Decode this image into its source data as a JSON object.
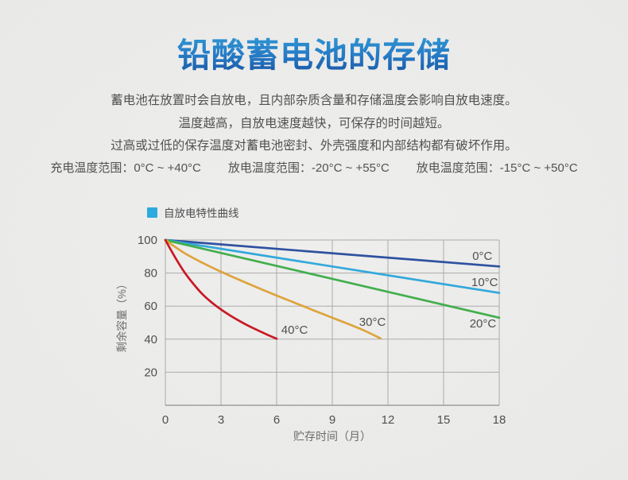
{
  "page": {
    "title": "铅酸蓄电池的存储",
    "description_lines": [
      "蓄电池在放置时会自放电，且内部杂质含量和存储温度会影响自放电速度。",
      "温度越高，自放电速度越快，可保存的时间越短。",
      "过高或过低的保存温度对蓄电池密封、外壳强度和内部结构都有破坏作用。"
    ],
    "temperature_ranges": [
      {
        "label": "充电温度范围：",
        "value": "0°C ~ +40°C"
      },
      {
        "label": "放电温度范围：",
        "value": "-20°C ~ +55°C"
      },
      {
        "label": "放电温度范围：",
        "value": "-15°C ~ +50°C"
      }
    ]
  },
  "legend": {
    "label": "自放电特性曲线",
    "swatch_color": "#29a9e0"
  },
  "colors": {
    "title_gradient_top": "#2fa0d9",
    "title_gradient_bottom": "#14509e",
    "grid": "#ababab",
    "axis": "#8e8e8e",
    "tick_text": "#4d4d4d",
    "axis_title_text": "#6a6a6a"
  },
  "chart_data": {
    "type": "line",
    "title": "自放电特性曲线",
    "xlabel": "贮存时间（月）",
    "ylabel": "剩余容量（%）",
    "xlim": [
      0,
      18
    ],
    "ylim": [
      0,
      100
    ],
    "x_ticks": [
      0,
      3,
      6,
      9,
      12,
      15,
      18
    ],
    "y_ticks": [
      20,
      40,
      60,
      80,
      100
    ],
    "grid": true,
    "legend_position": "top-left",
    "series": [
      {
        "name": "0°C",
        "color": "#2b4f9f",
        "points": [
          [
            0,
            100
          ],
          [
            18,
            84
          ]
        ],
        "label_at": [
          16.55,
          88
        ]
      },
      {
        "name": "10°C",
        "color": "#2fa8dc",
        "points": [
          [
            0,
            100
          ],
          [
            18,
            68
          ]
        ],
        "label_at": [
          16.5,
          72
        ]
      },
      {
        "name": "20°C",
        "color": "#3fae49",
        "points": [
          [
            0,
            100
          ],
          [
            18,
            53
          ]
        ],
        "label_at": [
          16.4,
          47
        ]
      },
      {
        "name": "30°C",
        "color": "#dfa339",
        "points": [
          [
            0,
            100
          ],
          [
            1,
            92.3
          ],
          [
            2,
            86.2
          ],
          [
            3,
            80.8
          ],
          [
            4,
            75.8
          ],
          [
            5,
            71
          ],
          [
            6,
            66.4
          ],
          [
            7,
            61.9
          ],
          [
            8,
            57.4
          ],
          [
            9,
            53
          ],
          [
            10,
            48.6
          ],
          [
            10.8,
            44.8
          ],
          [
            11.6,
            40.5
          ]
        ],
        "label_at": [
          10.45,
          48
        ]
      },
      {
        "name": "40°C",
        "color": "#c8151f",
        "points": [
          [
            0,
            100
          ],
          [
            0.5,
            90
          ],
          [
            1,
            81
          ],
          [
            1.5,
            73.6
          ],
          [
            2,
            67.2
          ],
          [
            2.5,
            62.2
          ],
          [
            3,
            58
          ],
          [
            3.5,
            54.3
          ],
          [
            4,
            51
          ],
          [
            4.5,
            48
          ],
          [
            5,
            45.3
          ],
          [
            5.5,
            42.7
          ],
          [
            6,
            40.3
          ]
        ],
        "label_at": [
          6.25,
          43.3
        ]
      }
    ]
  }
}
